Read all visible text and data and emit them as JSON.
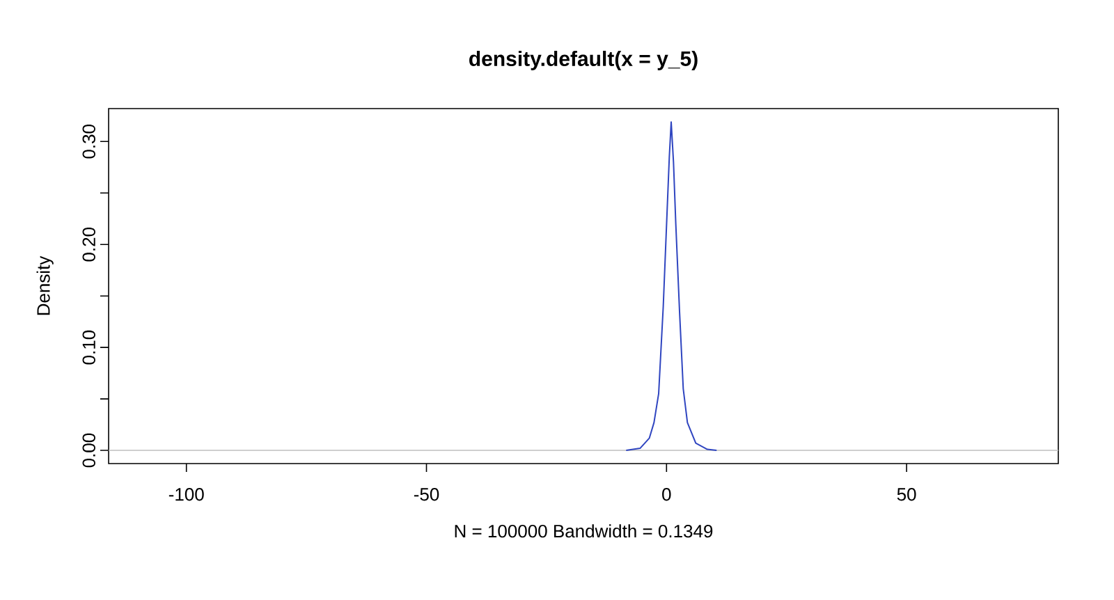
{
  "chart_data": {
    "type": "line",
    "title": "density.default(x = y_5)",
    "xlabel": "N = 100000   Bandwidth = 0.1349",
    "ylabel": "Density",
    "x": [
      -8.41,
      -5.51,
      -3.57,
      -2.61,
      -1.64,
      -0.68,
      0.1,
      0.58,
      0.97,
      1.45,
      1.93,
      2.71,
      3.48,
      4.35,
      6.09,
      8.5,
      10.43
    ],
    "series": [
      {
        "color": "#2f45c0",
        "values": [
          0.0,
          0.002,
          0.012,
          0.027,
          0.055,
          0.14,
          0.23,
          0.285,
          0.319,
          0.28,
          0.22,
          0.135,
          0.06,
          0.027,
          0.007,
          0.001,
          0.0
        ]
      }
    ],
    "xlim": [
      -116.2,
      81.6
    ],
    "ylim": [
      -0.0128,
      0.332
    ],
    "xticks": [
      -100,
      -50,
      0,
      50
    ],
    "yticks": [
      {
        "value": 0.0,
        "label": "0.00"
      },
      {
        "value": 0.05,
        "label": null
      },
      {
        "value": 0.1,
        "label": "0.10"
      },
      {
        "value": 0.15,
        "label": null
      },
      {
        "value": 0.2,
        "label": "0.20"
      },
      {
        "value": 0.25,
        "label": null
      },
      {
        "value": 0.3,
        "label": "0.30"
      }
    ],
    "ref_lines": [
      {
        "axis": "y",
        "value": 0,
        "color": "#bebebe"
      }
    ],
    "marker": "none",
    "line_style": "solid"
  }
}
